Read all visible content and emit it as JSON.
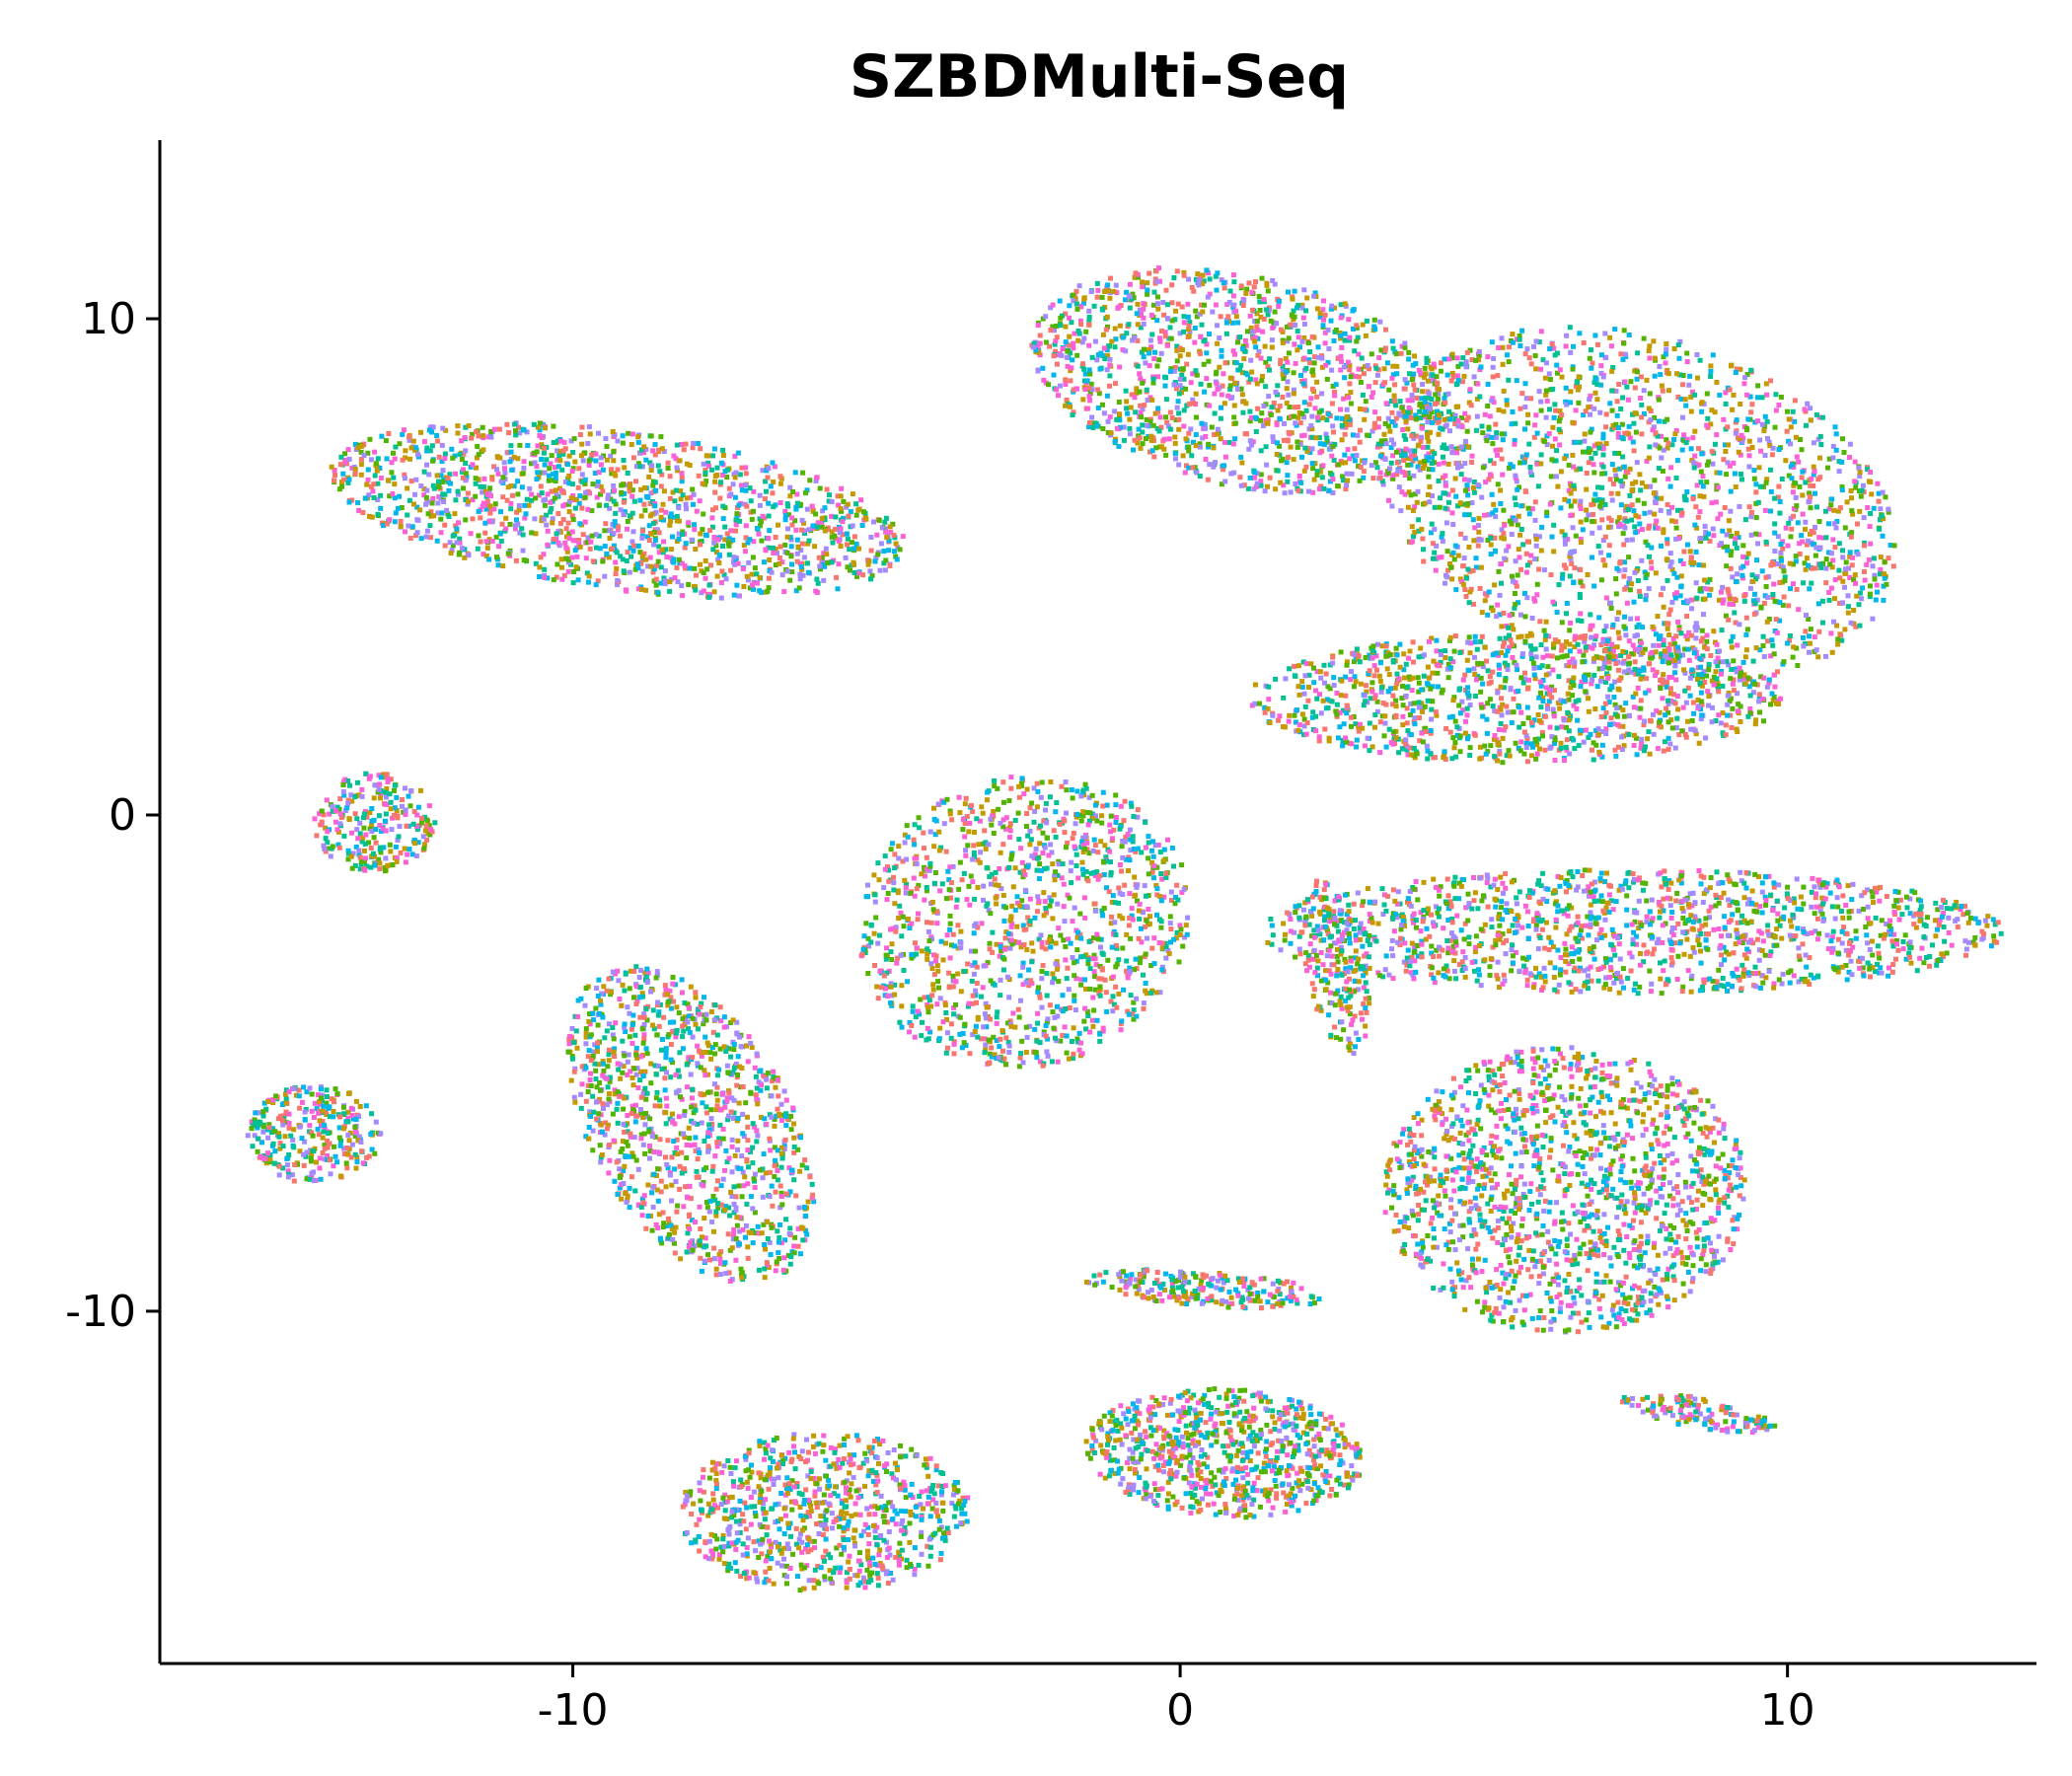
{
  "chart_data": {
    "type": "scatter",
    "title": "SZBDMulti-Seq",
    "xlabel": "",
    "ylabel": "",
    "xlim": [
      -16.8,
      14.1
    ],
    "ylim": [
      -17.1,
      13.6
    ],
    "x_ticks": [
      -10,
      0,
      10
    ],
    "x_tick_labels": [
      "-10",
      "0",
      "10"
    ],
    "y_ticks": [
      10,
      0,
      -10
    ],
    "y_tick_labels": [
      "10",
      "0",
      "-10"
    ],
    "grid": false,
    "legend": "none",
    "colors": [
      "#F8766D",
      "#C49A00",
      "#53B400",
      "#00C094",
      "#00B6EB",
      "#A58AFF",
      "#FB61D7"
    ],
    "clusters": [
      {
        "name": "",
        "cx": 1.0,
        "cy": 8.8,
        "rx": 3.6,
        "ry": 2.1,
        "rot": -18,
        "n": 1400
      },
      {
        "name": "",
        "cx": -9.3,
        "cy": 6.2,
        "rx": 4.8,
        "ry": 1.6,
        "rot": -10,
        "n": 1500
      },
      {
        "name": "",
        "cx": 7.5,
        "cy": 6.3,
        "rx": 4.5,
        "ry": 3.3,
        "rot": -28,
        "n": 2000
      },
      {
        "name": "",
        "cx": 5.5,
        "cy": 2.4,
        "rx": 4.4,
        "ry": 1.3,
        "rot": 0,
        "n": 1100
      },
      {
        "name": "",
        "cx": -13.3,
        "cy": -0.1,
        "rx": 1.0,
        "ry": 1.0,
        "rot": 0,
        "n": 250
      },
      {
        "name": "",
        "cx": -2.6,
        "cy": -2.1,
        "rx": 2.7,
        "ry": 3.0,
        "rot": -20,
        "n": 1200
      },
      {
        "name": "",
        "cx": 7.4,
        "cy": -2.3,
        "rx": 6.1,
        "ry": 1.25,
        "rot": 0,
        "n": 1400
      },
      {
        "name": "",
        "cx": 2.5,
        "cy": -3.0,
        "rx": 0.5,
        "ry": 1.8,
        "rot": 10,
        "n": 180
      },
      {
        "name": "",
        "cx": -8.1,
        "cy": -6.2,
        "rx": 1.7,
        "ry": 3.4,
        "rot": 22,
        "n": 1100
      },
      {
        "name": "",
        "cx": -14.3,
        "cy": -6.4,
        "rx": 1.1,
        "ry": 1.0,
        "rot": 0,
        "n": 300
      },
      {
        "name": "",
        "cx": 6.3,
        "cy": -7.5,
        "rx": 3.0,
        "ry": 2.9,
        "rot": 0,
        "n": 1500
      },
      {
        "name": "",
        "cx": 0.4,
        "cy": -9.5,
        "rx": 2.0,
        "ry": 0.35,
        "rot": -5,
        "n": 220
      },
      {
        "name": "",
        "cx": 0.7,
        "cy": -12.8,
        "rx": 2.3,
        "ry": 1.3,
        "rot": -5,
        "n": 800
      },
      {
        "name": "",
        "cx": 8.5,
        "cy": -12.0,
        "rx": 1.3,
        "ry": 0.3,
        "rot": -12,
        "n": 130
      },
      {
        "name": "",
        "cx": -5.9,
        "cy": -14.0,
        "rx": 2.4,
        "ry": 1.6,
        "rot": 0,
        "n": 800
      }
    ]
  }
}
